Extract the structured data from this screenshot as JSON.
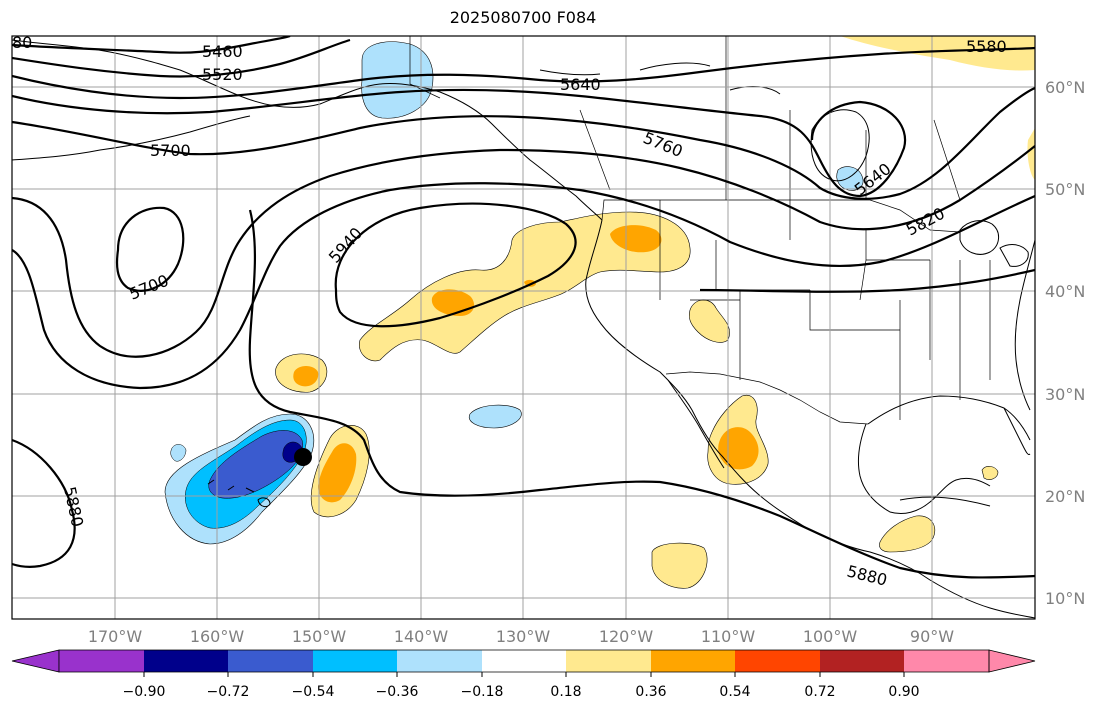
{
  "title": "2025080700 F084",
  "map": {
    "projection": "PlateCarree",
    "lon_range": [
      -180,
      -80
    ],
    "lat_range": [
      8,
      66
    ],
    "grid": true,
    "lat_labels": [
      "60°N",
      "50°N",
      "40°N",
      "30°N",
      "20°N",
      "10°N"
    ],
    "lon_labels": [
      "170°W",
      "160°W",
      "150°W",
      "140°W",
      "130°W",
      "120°W",
      "110°W",
      "100°W",
      "90°W"
    ],
    "contour_labels": [
      "80",
      "5460",
      "5520",
      "5640",
      "5580",
      "5700",
      "5760",
      "5640",
      "5820",
      "5940",
      "5700",
      "5880",
      "5880"
    ],
    "marker": {
      "type": "point",
      "color": "#000000",
      "lon": -151.4,
      "lat": 23.6
    }
  },
  "colorbar": {
    "ticks": [
      "−0.90",
      "−0.72",
      "−0.54",
      "−0.36",
      "−0.18",
      "0.18",
      "0.36",
      "0.54",
      "0.72",
      "0.90"
    ],
    "colors": [
      "#9932cc",
      "#00008b",
      "#3a5bcf",
      "#00bfff",
      "#aee1fc",
      "#ffffff",
      "#ffe98f",
      "#ffa500",
      "#ff4500",
      "#b22222",
      "#ff88aa"
    ],
    "extend": "both"
  },
  "fills": {
    "light_blue": "#aee1fc",
    "mid_blue": "#00bfff",
    "royal_blue": "#3a5bcf",
    "navy": "#00008b",
    "light_yellow": "#ffe98f",
    "orange": "#ffa500"
  }
}
